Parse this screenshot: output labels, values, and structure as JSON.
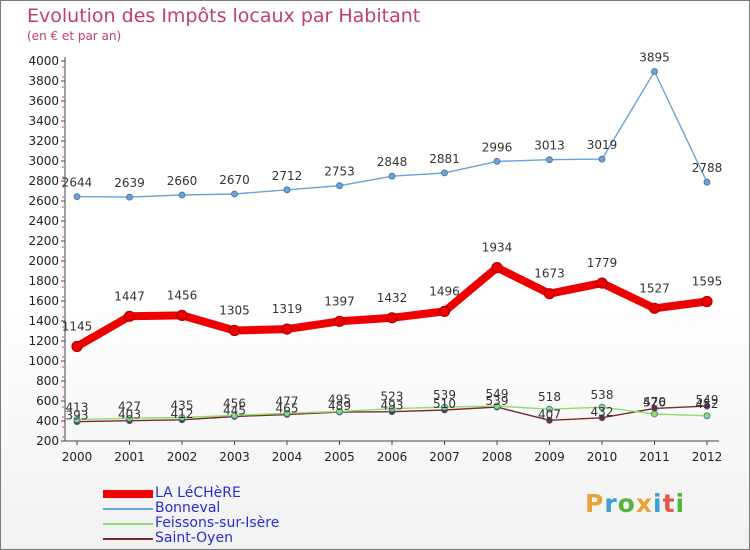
{
  "title": "Evolution des Impôts locaux par Habitant",
  "subtitle": "(en € et par an)",
  "logo": {
    "letters": [
      {
        "ch": "P",
        "color": "#e8a33a"
      },
      {
        "ch": "r",
        "color": "#3aa0d8"
      },
      {
        "ch": "o",
        "color": "#58b33a"
      },
      {
        "ch": "x",
        "color": "#e8a33a"
      },
      {
        "ch": "i",
        "color": "#3aa0d8"
      },
      {
        "ch": "t",
        "color": "#e05a4a"
      },
      {
        "ch": "i",
        "color": "#58b33a"
      }
    ]
  },
  "chart_data": {
    "type": "line",
    "title": "Evolution des Impôts locaux par Habitant",
    "subtitle": "(en € et par an)",
    "xlabel": "",
    "ylabel": "",
    "ylim": [
      200,
      4000
    ],
    "yticks": [
      200,
      400,
      600,
      800,
      1000,
      1200,
      1400,
      1600,
      1800,
      2000,
      2200,
      2400,
      2600,
      2800,
      3000,
      3200,
      3400,
      3600,
      3800,
      4000
    ],
    "categories": [
      "2000",
      "2001",
      "2002",
      "2003",
      "2004",
      "2005",
      "2006",
      "2007",
      "2008",
      "2009",
      "2010",
      "2011",
      "2012"
    ],
    "grid": false,
    "legend_position": "bottom-left",
    "series": [
      {
        "name": "LA LéCHèRE",
        "color": "#ee0000",
        "values": [
          1145,
          1447,
          1456,
          1305,
          1319,
          1397,
          1432,
          1496,
          1934,
          1673,
          1779,
          1527,
          1595
        ]
      },
      {
        "name": "Bonneval",
        "color": "#6aa3d4",
        "values": [
          2644,
          2639,
          2660,
          2670,
          2712,
          2753,
          2848,
          2881,
          2996,
          3013,
          3019,
          3895,
          2788
        ]
      },
      {
        "name": "Feissons-sur-Isère",
        "color": "#8fdc6a",
        "values": [
          413,
          427,
          435,
          456,
          477,
          495,
          523,
          539,
          549,
          518,
          538,
          470,
          452
        ]
      },
      {
        "name": "Saint-Oyen",
        "color": "#7a2a2a",
        "values": [
          393,
          403,
          412,
          445,
          465,
          489,
          493,
          510,
          539,
          407,
          432,
          526,
          549
        ]
      }
    ]
  }
}
